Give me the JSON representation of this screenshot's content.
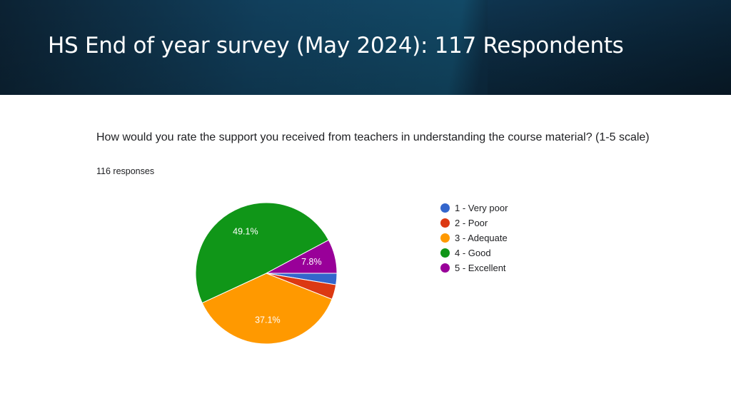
{
  "slide": {
    "title": "HS End of year survey (May 2024):  117 Respondents"
  },
  "survey": {
    "question": "How would you rate the support you received from teachers in understanding the course material? (1-5 scale)",
    "responses_text": "116 responses"
  },
  "chart_data": {
    "type": "pie",
    "categories": [
      "1 - Very poor",
      "2 - Poor",
      "3 - Adequate",
      "4 - Good",
      "5 - Excellent"
    ],
    "values": [
      2.6,
      3.4,
      37.1,
      49.1,
      7.8
    ],
    "data_labels": [
      "",
      "",
      "37.1%",
      "49.1%",
      "7.8%"
    ],
    "colors": [
      "#3366cc",
      "#dc3912",
      "#ff9900",
      "#109618",
      "#990099"
    ],
    "legend_position": "right",
    "title": ""
  }
}
